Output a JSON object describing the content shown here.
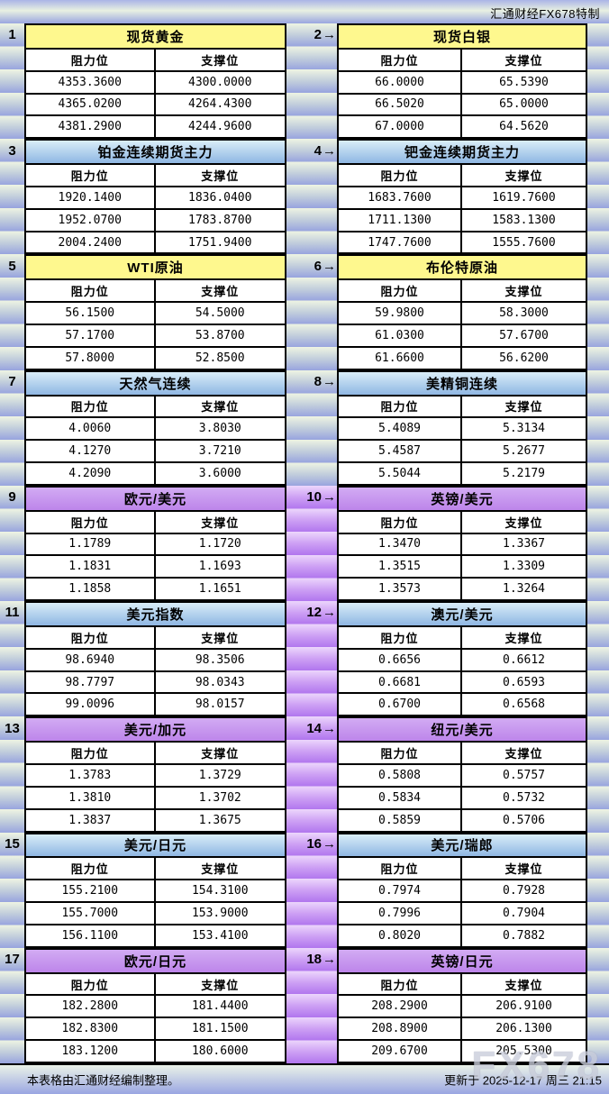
{
  "brand": "汇通财经FX678特制",
  "watermark": "FX678",
  "footer": {
    "left": "本表格由汇通财经编制整理。",
    "right": "更新于 2025-12-17 周三 21:15"
  },
  "chart_data": {
    "type": "table",
    "pointer_arrow": "→",
    "col_headers": {
      "resistance": "阻力位",
      "support": "支撑位"
    },
    "theme_colors": {
      "yellow": "#fef88e",
      "blue": "#8fb7e3",
      "purple": "#bd85ea"
    },
    "panels": [
      {
        "num": "1",
        "title": "现货黄金",
        "theme": "yellow",
        "resistance": [
          "4353.3600",
          "4365.0200",
          "4381.2900"
        ],
        "support": [
          "4300.0000",
          "4264.4300",
          "4244.9600"
        ]
      },
      {
        "num": "2",
        "title": "现货白银",
        "theme": "yellow",
        "resistance": [
          "66.0000",
          "66.5020",
          "67.0000"
        ],
        "support": [
          "65.5390",
          "65.0000",
          "64.5620"
        ]
      },
      {
        "num": "3",
        "title": "铂金连续期货主力",
        "theme": "blue",
        "resistance": [
          "1920.1400",
          "1952.0700",
          "2004.2400"
        ],
        "support": [
          "1836.0400",
          "1783.8700",
          "1751.9400"
        ]
      },
      {
        "num": "4",
        "title": "钯金连续期货主力",
        "theme": "blue",
        "resistance": [
          "1683.7600",
          "1711.1300",
          "1747.7600"
        ],
        "support": [
          "1619.7600",
          "1583.1300",
          "1555.7600"
        ]
      },
      {
        "num": "5",
        "title": "WTI原油",
        "theme": "yellow",
        "resistance": [
          "56.1500",
          "57.1700",
          "57.8000"
        ],
        "support": [
          "54.5000",
          "53.8700",
          "52.8500"
        ]
      },
      {
        "num": "6",
        "title": "布伦特原油",
        "theme": "yellow",
        "resistance": [
          "59.9800",
          "61.0300",
          "61.6600"
        ],
        "support": [
          "58.3000",
          "57.6700",
          "56.6200"
        ]
      },
      {
        "num": "7",
        "title": "天然气连续",
        "theme": "blue",
        "resistance": [
          "4.0060",
          "4.1270",
          "4.2090"
        ],
        "support": [
          "3.8030",
          "3.7210",
          "3.6000"
        ]
      },
      {
        "num": "8",
        "title": "美精铜连续",
        "theme": "blue",
        "resistance": [
          "5.4089",
          "5.4587",
          "5.5044"
        ],
        "support": [
          "5.3134",
          "5.2677",
          "5.2179"
        ]
      },
      {
        "num": "9",
        "title": "欧元/美元",
        "theme": "purple",
        "resistance": [
          "1.1789",
          "1.1831",
          "1.1858"
        ],
        "support": [
          "1.1720",
          "1.1693",
          "1.1651"
        ]
      },
      {
        "num": "10",
        "title": "英镑/美元",
        "theme": "purple",
        "resistance": [
          "1.3470",
          "1.3515",
          "1.3573"
        ],
        "support": [
          "1.3367",
          "1.3309",
          "1.3264"
        ]
      },
      {
        "num": "11",
        "title": "美元指数",
        "theme": "blue",
        "resistance": [
          "98.6940",
          "98.7797",
          "99.0096"
        ],
        "support": [
          "98.3506",
          "98.0343",
          "98.0157"
        ]
      },
      {
        "num": "12",
        "title": "澳元/美元",
        "theme": "blue",
        "resistance": [
          "0.6656",
          "0.6681",
          "0.6700"
        ],
        "support": [
          "0.6612",
          "0.6593",
          "0.6568"
        ]
      },
      {
        "num": "13",
        "title": "美元/加元",
        "theme": "purple",
        "resistance": [
          "1.3783",
          "1.3810",
          "1.3837"
        ],
        "support": [
          "1.3729",
          "1.3702",
          "1.3675"
        ]
      },
      {
        "num": "14",
        "title": "纽元/美元",
        "theme": "purple",
        "resistance": [
          "0.5808",
          "0.5834",
          "0.5859"
        ],
        "support": [
          "0.5757",
          "0.5732",
          "0.5706"
        ]
      },
      {
        "num": "15",
        "title": "美元/日元",
        "theme": "blue",
        "resistance": [
          "155.2100",
          "155.7000",
          "156.1100"
        ],
        "support": [
          "154.3100",
          "153.9000",
          "153.4100"
        ]
      },
      {
        "num": "16",
        "title": "美元/瑞郎",
        "theme": "blue",
        "resistance": [
          "0.7974",
          "0.7996",
          "0.8020"
        ],
        "support": [
          "0.7928",
          "0.7904",
          "0.7882"
        ]
      },
      {
        "num": "17",
        "title": "欧元/日元",
        "theme": "purple",
        "resistance": [
          "182.2800",
          "182.8300",
          "183.1200"
        ],
        "support": [
          "181.4400",
          "181.1500",
          "180.6000"
        ]
      },
      {
        "num": "18",
        "title": "英镑/日元",
        "theme": "purple",
        "resistance": [
          "208.2900",
          "208.8900",
          "209.6700"
        ],
        "support": [
          "206.9100",
          "206.1300",
          "205.5300"
        ]
      }
    ]
  }
}
